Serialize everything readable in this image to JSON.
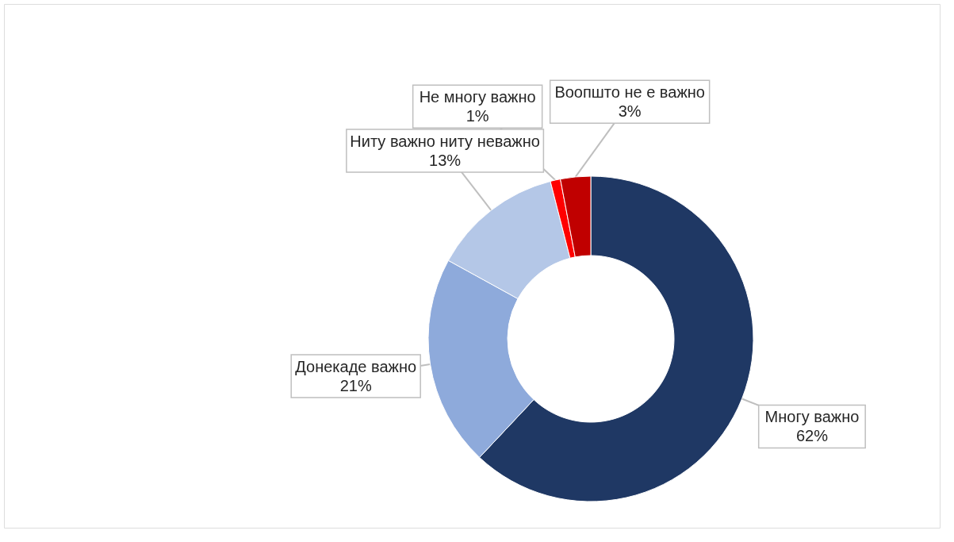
{
  "chart_data": {
    "type": "donut",
    "categories": [
      "Многу важно",
      "Донекаде важно",
      "Ниту важно ниту неважно",
      "Не многу важно",
      "Воопшто не е важно"
    ],
    "values": [
      62,
      21,
      13,
      1,
      3
    ],
    "value_labels": [
      "62%",
      "21%",
      "13%",
      "1%",
      "3%"
    ],
    "colors": [
      "#1f3864",
      "#8eaadb",
      "#b4c7e7",
      "#ff0000",
      "#c00000"
    ],
    "legend": false
  }
}
